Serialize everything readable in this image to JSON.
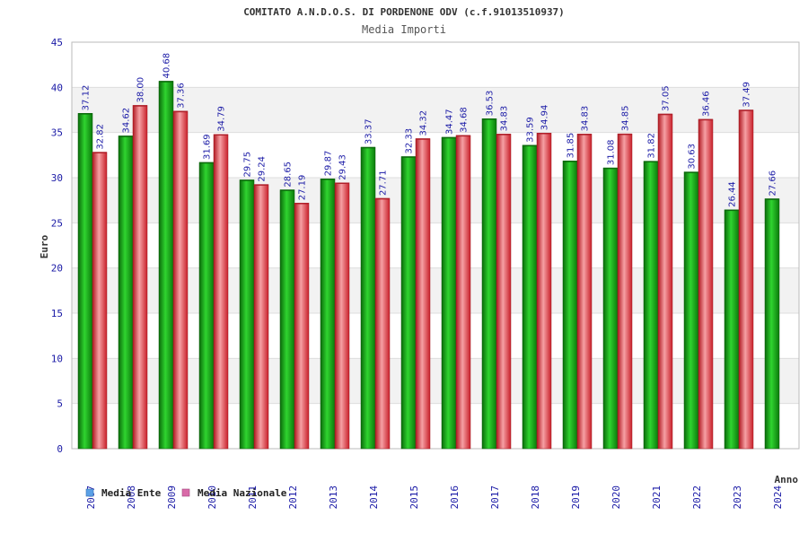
{
  "chart_data": {
    "type": "bar",
    "title": "COMITATO A.N.D.O.S. DI PORDENONE ODV (c.f.91013510937)",
    "subtitle": "Media Importi",
    "xlabel": "Anno",
    "ylabel": "Euro",
    "ylim": [
      0,
      45
    ],
    "yticks": [
      0,
      5,
      10,
      15,
      20,
      25,
      30,
      35,
      40,
      45
    ],
    "grid": true,
    "legend_position": "bottom-left",
    "categories": [
      "2007",
      "2008",
      "2009",
      "2010",
      "2011",
      "2012",
      "2013",
      "2014",
      "2015",
      "2016",
      "2017",
      "2018",
      "2019",
      "2020",
      "2021",
      "2022",
      "2023",
      "2024"
    ],
    "series": [
      {
        "name": "Media Ente",
        "legend_color": "#5aa0e6",
        "color": "#1db31d",
        "values": [
          37.12,
          34.62,
          40.68,
          31.69,
          29.75,
          28.65,
          29.87,
          33.37,
          32.33,
          34.47,
          36.53,
          33.59,
          31.85,
          31.08,
          31.82,
          30.63,
          26.44,
          27.66
        ],
        "labels": [
          "37.12",
          "34.62",
          "40.68",
          "31.69",
          "29.75",
          "28.65",
          "29.87",
          "33.37",
          "32.33",
          "34.47",
          "36.53",
          "33.59",
          "31.85",
          "31.08",
          "31.82",
          "30.63",
          "26.44",
          "27.66"
        ]
      },
      {
        "name": "Media Nazionale",
        "legend_color": "#d96aa8",
        "color": "#e8383d",
        "values": [
          32.82,
          38.0,
          37.36,
          34.79,
          29.24,
          27.19,
          29.43,
          27.71,
          34.32,
          34.68,
          34.83,
          34.94,
          34.83,
          34.85,
          37.05,
          36.46,
          37.49,
          null
        ],
        "labels": [
          "32.82",
          "38.00",
          "37.36",
          "34.79",
          "29.24",
          "27.19",
          "29.43",
          "27.71",
          "34.32",
          "34.68",
          "34.83",
          "34.94",
          "34.83",
          "34.85",
          "37.05",
          "36.46",
          "37.49",
          ""
        ]
      }
    ]
  }
}
